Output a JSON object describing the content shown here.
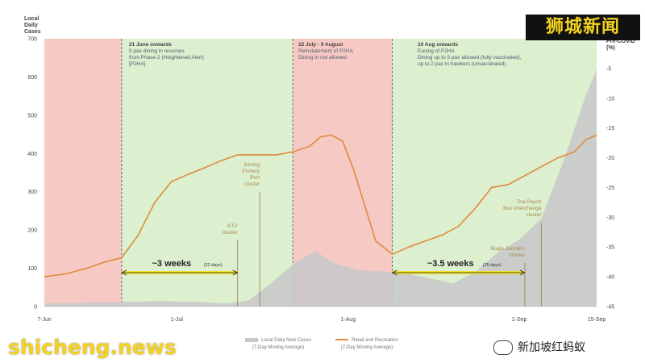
{
  "chart_data": {
    "type": "line",
    "x_start_date": "2021-06-07",
    "x_end_date": "2021-09-15",
    "x_ticks": [
      "7-Jun",
      "1-Jul",
      "1-Aug",
      "1-Sep",
      "15-Sep"
    ],
    "y_left": {
      "label": "Local\nDaily\nCases",
      "range": [
        0,
        700
      ],
      "ticks": [
        0,
        100,
        200,
        300,
        400,
        500,
        600,
        700
      ]
    },
    "y_right": {
      "label": "% from\nPre-COVID\n(%)",
      "range": [
        -45,
        0
      ],
      "ticks": [
        -5,
        -10,
        -15,
        -20,
        -25,
        -30,
        -35,
        -40,
        -45
      ]
    },
    "grid": false,
    "colors": {
      "phase_red": "#f7c9c4",
      "phase_green": "#dcefcf",
      "cases_area": "#c9c9c9",
      "retail_line": "#e08a3c",
      "bracket": "#f2e22f",
      "annotation_text": "#a88a4a"
    },
    "series": [
      {
        "name": "Local Daily New Cases",
        "name_sub": "(7-Day Moving Average)",
        "type": "area",
        "axis": "left",
        "points": [
          [
            "2021-06-07",
            8
          ],
          [
            "2021-06-14",
            10
          ],
          [
            "2021-06-21",
            12
          ],
          [
            "2021-06-28",
            14
          ],
          [
            "2021-07-05",
            12
          ],
          [
            "2021-07-10",
            8
          ],
          [
            "2021-07-14",
            16
          ],
          [
            "2021-07-18",
            60
          ],
          [
            "2021-07-22",
            110
          ],
          [
            "2021-07-26",
            145
          ],
          [
            "2021-07-30",
            110
          ],
          [
            "2021-08-03",
            95
          ],
          [
            "2021-08-07",
            92
          ],
          [
            "2021-08-12",
            85
          ],
          [
            "2021-08-17",
            70
          ],
          [
            "2021-08-20",
            60
          ],
          [
            "2021-08-24",
            90
          ],
          [
            "2021-08-28",
            140
          ],
          [
            "2021-09-01",
            175
          ],
          [
            "2021-09-05",
            230
          ],
          [
            "2021-09-09",
            380
          ],
          [
            "2021-09-13",
            550
          ],
          [
            "2021-09-15",
            620
          ]
        ]
      },
      {
        "name": "Retail and Recreation",
        "name_sub": "(7-Day Moving Average)",
        "type": "line",
        "axis": "right",
        "points": [
          [
            "2021-06-07",
            -40
          ],
          [
            "2021-06-11",
            -39.5
          ],
          [
            "2021-06-15",
            -38.5
          ],
          [
            "2021-06-18",
            -37.5
          ],
          [
            "2021-06-21",
            -36.8
          ],
          [
            "2021-06-24",
            -33
          ],
          [
            "2021-06-27",
            -27.5
          ],
          [
            "2021-06-30",
            -24
          ],
          [
            "2021-07-03",
            -22.8
          ],
          [
            "2021-07-06",
            -21.7
          ],
          [
            "2021-07-09",
            -20.5
          ],
          [
            "2021-07-12",
            -19.5
          ],
          [
            "2021-07-16",
            -19.5
          ],
          [
            "2021-07-19",
            -19.5
          ],
          [
            "2021-07-22",
            -19.0
          ],
          [
            "2021-07-25",
            -18.1
          ],
          [
            "2021-07-27",
            -16.5
          ],
          [
            "2021-07-29",
            -16.2
          ],
          [
            "2021-07-31",
            -17.2
          ],
          [
            "2021-08-02",
            -22
          ],
          [
            "2021-08-04",
            -28
          ],
          [
            "2021-08-06",
            -34
          ],
          [
            "2021-08-09",
            -36.2
          ],
          [
            "2021-08-12",
            -35.0
          ],
          [
            "2021-08-15",
            -34.0
          ],
          [
            "2021-08-18",
            -33.0
          ],
          [
            "2021-08-21",
            -31.5
          ],
          [
            "2021-08-24",
            -28.5
          ],
          [
            "2021-08-27",
            -25.0
          ],
          [
            "2021-08-30",
            -24.5
          ],
          [
            "2021-09-02",
            -23.0
          ],
          [
            "2021-09-05",
            -21.5
          ],
          [
            "2021-09-08",
            -20.0
          ],
          [
            "2021-09-11",
            -19.0
          ],
          [
            "2021-09-13",
            -17.0
          ],
          [
            "2021-09-15",
            -16.2
          ]
        ]
      }
    ],
    "phases": [
      {
        "from": "2021-06-07",
        "to": "2021-06-21",
        "color": "red"
      },
      {
        "from": "2021-06-21",
        "to": "2021-07-22",
        "color": "green"
      },
      {
        "from": "2021-07-22",
        "to": "2021-08-09",
        "color": "red"
      },
      {
        "from": "2021-08-09",
        "to": "2021-09-15",
        "color": "green"
      }
    ],
    "annotations": [
      {
        "title": "21 June onwards",
        "lines": [
          "5 pax dining in resumes",
          "from Phase 2 (Heightened Alert)",
          "[P2HA]"
        ]
      },
      {
        "title": "22 July - 9 August",
        "lines": [
          "Reinstatement of P2HA",
          "Dining in not allowed"
        ]
      },
      {
        "title": "10 Aug onwards",
        "lines": [
          "Easing of P2HA",
          "Dining up to 5 pax allowed (fully vaccinated),",
          "up to 2 pax in hawkers (unvaccinated)"
        ]
      }
    ],
    "clusters": [
      {
        "label": "KTV\ncluster",
        "date": "2021-07-12"
      },
      {
        "label": "Jurong\nFishery\nPort\ncluster",
        "date": "2021-07-16"
      },
      {
        "label": "Bugis Junction\ncluster",
        "date": "2021-09-02"
      },
      {
        "label": "Toa Payoh\nBus Interchange\ncluster",
        "date": "2021-09-05"
      }
    ],
    "brackets": [
      {
        "label": "~3 weeks",
        "sub": "(22 days)",
        "from": "2021-06-21",
        "to": "2021-07-12"
      },
      {
        "label": "~3.5 weeks",
        "sub": "(25 days)",
        "from": "2021-08-09",
        "to": "2021-09-02"
      }
    ]
  },
  "watermarks": {
    "top_right": "狮城新闻",
    "bottom_left": "shicheng.news",
    "bottom_right": "新加坡红蚂蚁"
  }
}
